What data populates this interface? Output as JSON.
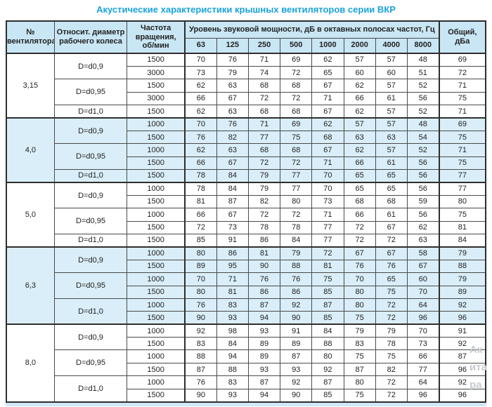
{
  "title": "Акустические характеристики крышных вентиляторов серии ВКР",
  "colors": {
    "title_accent": "#1aa3db",
    "header_bg": "#c9e6f4",
    "shaded_section_bg": "#d9eef8",
    "border_dark": "#2e2e2e",
    "border_inner": "#4a4a4a",
    "watermark_gray": "#c6ccd2"
  },
  "table": {
    "headers": {
      "fan_no": "№\nвентилятора",
      "diameter": "Относит. диаметр\nрабочего колеса",
      "rpm": "Частота\nвращения,\nоб/мин",
      "spl": "Уровень звуковой мощности, дБ в октавных полосах частот, Гц",
      "freqs": [
        "63",
        "125",
        "250",
        "500",
        "1000",
        "2000",
        "4000",
        "8000"
      ],
      "total": "Общий,\nдБа"
    },
    "sections": [
      {
        "fan": "3,15",
        "shaded": false,
        "groups": [
          {
            "diameter": "D=d0,9",
            "rows": [
              {
                "rpm": "1500",
                "values": [
                  70,
                  76,
                  71,
                  69,
                  62,
                  57,
                  57,
                  48
                ],
                "total": 69
              },
              {
                "rpm": "3000",
                "values": [
                  73,
                  79,
                  74,
                  72,
                  65,
                  60,
                  60,
                  51
                ],
                "total": 72
              }
            ]
          },
          {
            "diameter": "D=d0,95",
            "rows": [
              {
                "rpm": "1500",
                "values": [
                  62,
                  63,
                  68,
                  68,
                  67,
                  62,
                  57,
                  52
                ],
                "total": 71
              },
              {
                "rpm": "3000",
                "values": [
                  66,
                  67,
                  72,
                  72,
                  71,
                  66,
                  61,
                  56
                ],
                "total": 75
              }
            ]
          },
          {
            "diameter": "D=d1,0",
            "rows": [
              {
                "rpm": "1500",
                "values": [
                  62,
                  63,
                  68,
                  68,
                  67,
                  62,
                  57,
                  52
                ],
                "total": 71
              }
            ]
          }
        ]
      },
      {
        "fan": "4,0",
        "shaded": true,
        "groups": [
          {
            "diameter": "D=d0,9",
            "rows": [
              {
                "rpm": "1000",
                "values": [
                  70,
                  76,
                  71,
                  69,
                  62,
                  57,
                  57,
                  48
                ],
                "total": 69
              },
              {
                "rpm": "1500",
                "values": [
                  76,
                  82,
                  77,
                  75,
                  68,
                  63,
                  63,
                  54
                ],
                "total": 75
              }
            ]
          },
          {
            "diameter": "D=d0,95",
            "rows": [
              {
                "rpm": "1000",
                "values": [
                  62,
                  63,
                  68,
                  68,
                  67,
                  62,
                  57,
                  52
                ],
                "total": 71
              },
              {
                "rpm": "1500",
                "values": [
                  66,
                  67,
                  72,
                  72,
                  71,
                  66,
                  61,
                  56
                ],
                "total": 75
              }
            ]
          },
          {
            "diameter": "D=d1,0",
            "rows": [
              {
                "rpm": "1500",
                "values": [
                  78,
                  84,
                  79,
                  77,
                  70,
                  65,
                  65,
                  56
                ],
                "total": 77
              }
            ]
          }
        ]
      },
      {
        "fan": "5,0",
        "shaded": false,
        "groups": [
          {
            "diameter": "D=d0,9",
            "rows": [
              {
                "rpm": "1000",
                "values": [
                  78,
                  84,
                  79,
                  77,
                  70,
                  65,
                  65,
                  56
                ],
                "total": 77
              },
              {
                "rpm": "1500",
                "values": [
                  81,
                  87,
                  82,
                  80,
                  73,
                  68,
                  68,
                  59
                ],
                "total": 80
              }
            ]
          },
          {
            "diameter": "D=d0,95",
            "rows": [
              {
                "rpm": "1000",
                "values": [
                  66,
                  67,
                  72,
                  72,
                  71,
                  66,
                  61,
                  56
                ],
                "total": 75
              },
              {
                "rpm": "1500",
                "values": [
                  72,
                  73,
                  78,
                  78,
                  77,
                  72,
                  67,
                  62
                ],
                "total": 81
              }
            ]
          },
          {
            "diameter": "D=d1,0",
            "rows": [
              {
                "rpm": "1500",
                "values": [
                  85,
                  91,
                  86,
                  84,
                  77,
                  72,
                  72,
                  63
                ],
                "total": 84
              }
            ]
          }
        ]
      },
      {
        "fan": "6,3",
        "shaded": true,
        "groups": [
          {
            "diameter": "D=d0,9",
            "rows": [
              {
                "rpm": "1000",
                "values": [
                  80,
                  86,
                  81,
                  79,
                  72,
                  67,
                  67,
                  58
                ],
                "total": 79
              },
              {
                "rpm": "1500",
                "values": [
                  89,
                  95,
                  90,
                  88,
                  81,
                  76,
                  76,
                  67
                ],
                "total": 88
              }
            ]
          },
          {
            "diameter": "D=d0,95",
            "rows": [
              {
                "rpm": "1000",
                "values": [
                  70,
                  71,
                  76,
                  76,
                  75,
                  70,
                  65,
                  60
                ],
                "total": 79
              },
              {
                "rpm": "1500",
                "values": [
                  80,
                  81,
                  86,
                  86,
                  85,
                  80,
                  75,
                  70
                ],
                "total": 89
              }
            ]
          },
          {
            "diameter": "D=d1,0",
            "rows": [
              {
                "rpm": "1000",
                "values": [
                  76,
                  83,
                  87,
                  92,
                  87,
                  80,
                  72,
                  64
                ],
                "total": 92
              },
              {
                "rpm": "1500",
                "values": [
                  90,
                  93,
                  94,
                  90,
                  85,
                  75,
                  72,
                  96
                ],
                "total": 96
              }
            ]
          }
        ]
      },
      {
        "fan": "8,0",
        "shaded": false,
        "groups": [
          {
            "diameter": "D=d0,9",
            "rows": [
              {
                "rpm": "1000",
                "values": [
                  92,
                  98,
                  93,
                  91,
                  84,
                  79,
                  79,
                  70
                ],
                "total": 91
              },
              {
                "rpm": "1500",
                "values": [
                  83,
                  84,
                  89,
                  89,
                  88,
                  83,
                  78,
                  73
                ],
                "total": 92
              }
            ]
          },
          {
            "diameter": "D=d0,95",
            "rows": [
              {
                "rpm": "1000",
                "values": [
                  88,
                  94,
                  89,
                  87,
                  80,
                  75,
                  75,
                  66
                ],
                "total": 87
              },
              {
                "rpm": "1500",
                "values": [
                  87,
                  88,
                  93,
                  93,
                  92,
                  87,
                  82,
                  77
                ],
                "total": 96
              }
            ]
          },
          {
            "diameter": "D=d1,0",
            "rows": [
              {
                "rpm": "1000",
                "values": [
                  76,
                  83,
                  87,
                  92,
                  87,
                  80,
                  72,
                  64
                ],
                "total": 92
              },
              {
                "rpm": "1500",
                "values": [
                  90,
                  93,
                  94,
                  90,
                  85,
                  75,
                  72,
                  96
                ],
                "total": 96
              }
            ]
          }
        ]
      }
    ]
  },
  "watermark": {
    "lines": [
      "Ак",
      "ита",
      "ра"
    ]
  }
}
